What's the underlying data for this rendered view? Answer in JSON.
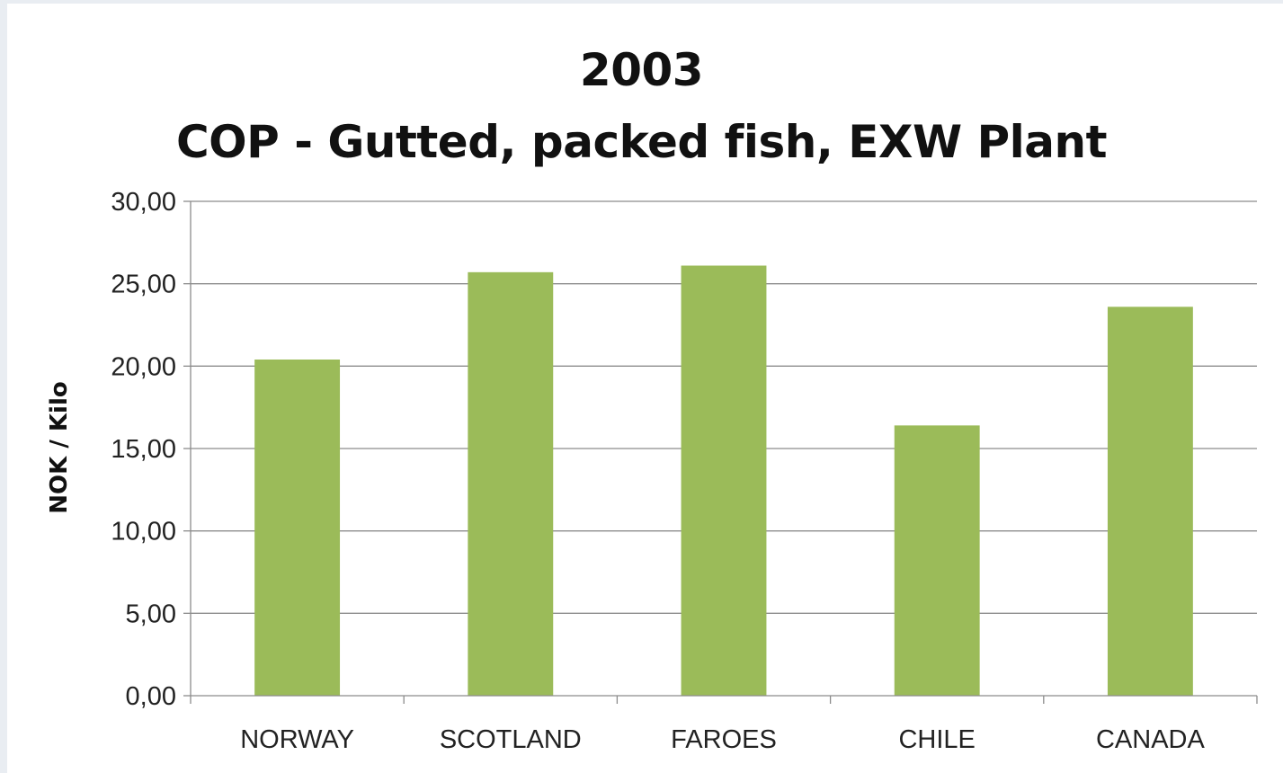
{
  "chart_data": {
    "type": "bar",
    "title": "2003",
    "subtitle": "COP - Gutted, packed fish, EXW Plant",
    "xlabel": "",
    "ylabel": "NOK / Kilo",
    "categories": [
      "NORWAY",
      "SCOTLAND",
      "FAROES",
      "CHILE",
      "CANADA"
    ],
    "values": [
      20.4,
      25.7,
      26.1,
      16.4,
      23.6
    ],
    "ylim": [
      0,
      30
    ],
    "yticks": [
      0,
      5,
      10,
      15,
      20,
      25,
      30
    ],
    "ytick_labels": [
      "0,00",
      "5,00",
      "10,00",
      "15,00",
      "20,00",
      "25,00",
      "30,00"
    ],
    "bar_color": "#9bbb59",
    "grid": true,
    "legend": "none"
  }
}
